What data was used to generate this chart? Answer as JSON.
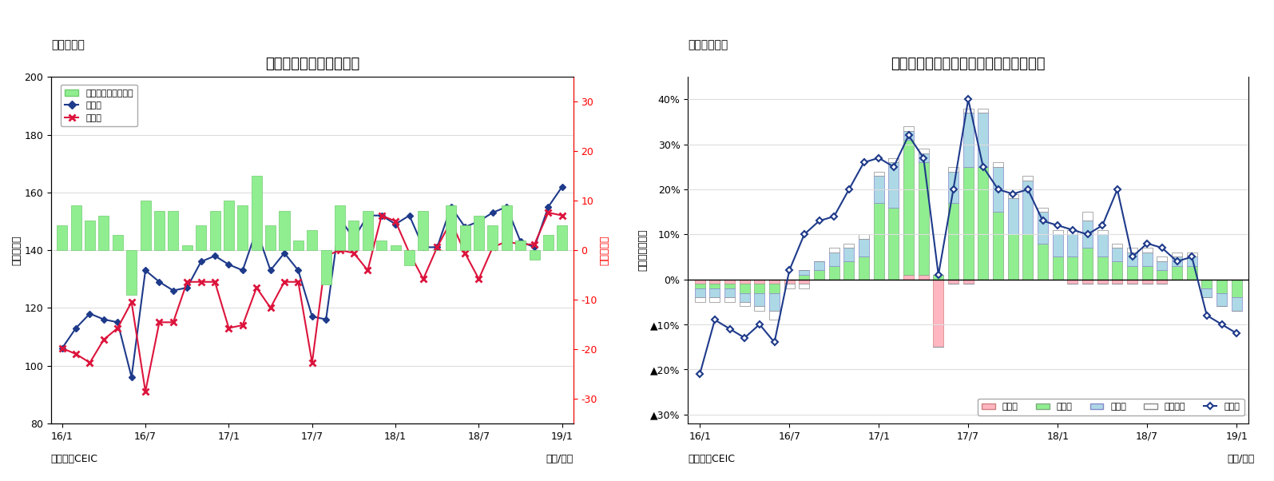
{
  "chart1": {
    "title": "インドネシアの貴易収支",
    "subtitle": "（図表９）",
    "ylabel_left": "（億ドル）",
    "ylabel_right": "（億ドル）",
    "xlabel": "（年/月）",
    "source": "（資料）CEIC",
    "ylim_left": [
      80,
      200
    ],
    "ylim_right": [
      -35,
      35
    ],
    "yticks_left": [
      80,
      100,
      120,
      140,
      160,
      180,
      200
    ],
    "yticks_right": [
      -30.0,
      -20.0,
      -10.0,
      0.0,
      10.0,
      20.0,
      30.0
    ],
    "xtick_labels": [
      "16/1",
      "16/7",
      "17/1",
      "17/7",
      "18/1",
      "18/7",
      "19/1"
    ],
    "bar_color": "#90EE90",
    "export_color": "#1E3A8A",
    "import_color": "#DC143C",
    "export_data": [
      106,
      113,
      118,
      116,
      115,
      96,
      133,
      129,
      126,
      127,
      136,
      138,
      135,
      133,
      147,
      133,
      139,
      133,
      117,
      116,
      151,
      144,
      152,
      152,
      149,
      152,
      141,
      141,
      155,
      148,
      150,
      153,
      155,
      143,
      141,
      155,
      162
    ],
    "import_data": [
      106,
      104,
      101,
      109,
      113,
      122,
      91,
      115,
      115,
      129,
      129,
      129,
      113,
      114,
      127,
      120,
      129,
      129,
      101,
      138,
      140,
      139,
      133,
      152,
      150,
      139,
      130,
      141,
      150,
      139,
      130,
      141,
      143,
      142,
      142,
      153,
      152
    ],
    "trade_balance": [
      5,
      9,
      6,
      7,
      3,
      -9,
      10,
      8,
      8,
      1,
      5,
      8,
      10,
      9,
      15,
      5,
      8,
      2,
      4,
      -7,
      9,
      6,
      8,
      2,
      1,
      -3,
      8,
      0,
      9,
      5,
      7,
      5,
      9,
      2,
      -2,
      3,
      5
    ],
    "n_bars": 37
  },
  "chart2": {
    "title": "インドネシア　輸出の伸び率（品目別）",
    "subtitle": "（図表１０）",
    "ylabel": "（前年同月比）",
    "xlabel": "（年/月）",
    "source": "（資料）CEIC",
    "ylim": [
      -0.32,
      0.45
    ],
    "ytick_labels": [
      "▲30%",
      "▲20%",
      "▲10%",
      "0%",
      "10%",
      "20%",
      "30%",
      "40%"
    ],
    "ytick_vals": [
      -0.3,
      -0.2,
      -0.1,
      0.0,
      0.1,
      0.2,
      0.3,
      0.4
    ],
    "xtick_labels": [
      "16/1",
      "16/7",
      "17/1",
      "17/7",
      "18/1",
      "18/7",
      "19/1"
    ],
    "agri_color": "#FFB6C1",
    "mfg_color": "#90EE90",
    "mining_color": "#ADD8E6",
    "oil_color": "#FFFFFF",
    "export_color": "#1E3A8A",
    "agri_data": [
      -0.01,
      -0.01,
      -0.01,
      -0.01,
      -0.01,
      -0.01,
      -0.01,
      -0.01,
      0.0,
      0.0,
      0.0,
      0.0,
      0.0,
      0.0,
      0.01,
      0.01,
      -0.15,
      -0.01,
      -0.01,
      0.0,
      0.0,
      0.0,
      0.0,
      0.0,
      0.0,
      -0.01,
      -0.01,
      -0.01,
      -0.01,
      -0.01,
      -0.01,
      -0.01,
      0.0,
      0.0,
      0.0,
      0.0,
      0.0
    ],
    "mfg_data": [
      -0.01,
      -0.01,
      -0.01,
      -0.02,
      -0.02,
      -0.02,
      0.0,
      0.01,
      0.02,
      0.03,
      0.04,
      0.05,
      0.17,
      0.16,
      0.3,
      0.25,
      0.01,
      0.17,
      0.25,
      0.25,
      0.15,
      0.1,
      0.1,
      0.08,
      0.05,
      0.05,
      0.07,
      0.05,
      0.04,
      0.03,
      0.03,
      0.02,
      0.03,
      0.03,
      -0.02,
      -0.03,
      -0.04
    ],
    "mining_data": [
      -0.02,
      -0.02,
      -0.02,
      -0.02,
      -0.03,
      -0.04,
      0.0,
      0.01,
      0.02,
      0.03,
      0.03,
      0.04,
      0.06,
      0.1,
      0.02,
      0.02,
      0.0,
      0.07,
      0.12,
      0.12,
      0.1,
      0.08,
      0.12,
      0.07,
      0.05,
      0.05,
      0.06,
      0.05,
      0.03,
      0.03,
      0.03,
      0.02,
      0.02,
      0.02,
      -0.02,
      -0.03,
      -0.03
    ],
    "oil_data": [
      -0.01,
      -0.01,
      -0.01,
      -0.01,
      -0.01,
      -0.02,
      -0.01,
      -0.01,
      0.0,
      0.01,
      0.01,
      0.01,
      0.01,
      0.01,
      0.01,
      0.01,
      0.0,
      0.01,
      0.01,
      0.01,
      0.01,
      0.01,
      0.01,
      0.01,
      0.01,
      0.01,
      0.02,
      0.01,
      0.01,
      0.01,
      0.01,
      0.01,
      0.01,
      0.01,
      0.0,
      0.0,
      0.0
    ],
    "export_line": [
      -0.21,
      -0.09,
      -0.11,
      -0.13,
      -0.1,
      -0.14,
      0.02,
      0.1,
      0.13,
      0.14,
      0.2,
      0.26,
      0.27,
      0.25,
      0.32,
      0.27,
      0.01,
      0.2,
      0.4,
      0.25,
      0.2,
      0.19,
      0.2,
      0.13,
      0.12,
      0.11,
      0.1,
      0.12,
      0.2,
      0.05,
      0.08,
      0.07,
      0.04,
      0.05,
      -0.08,
      -0.1,
      -0.12
    ],
    "n_bars": 37
  }
}
